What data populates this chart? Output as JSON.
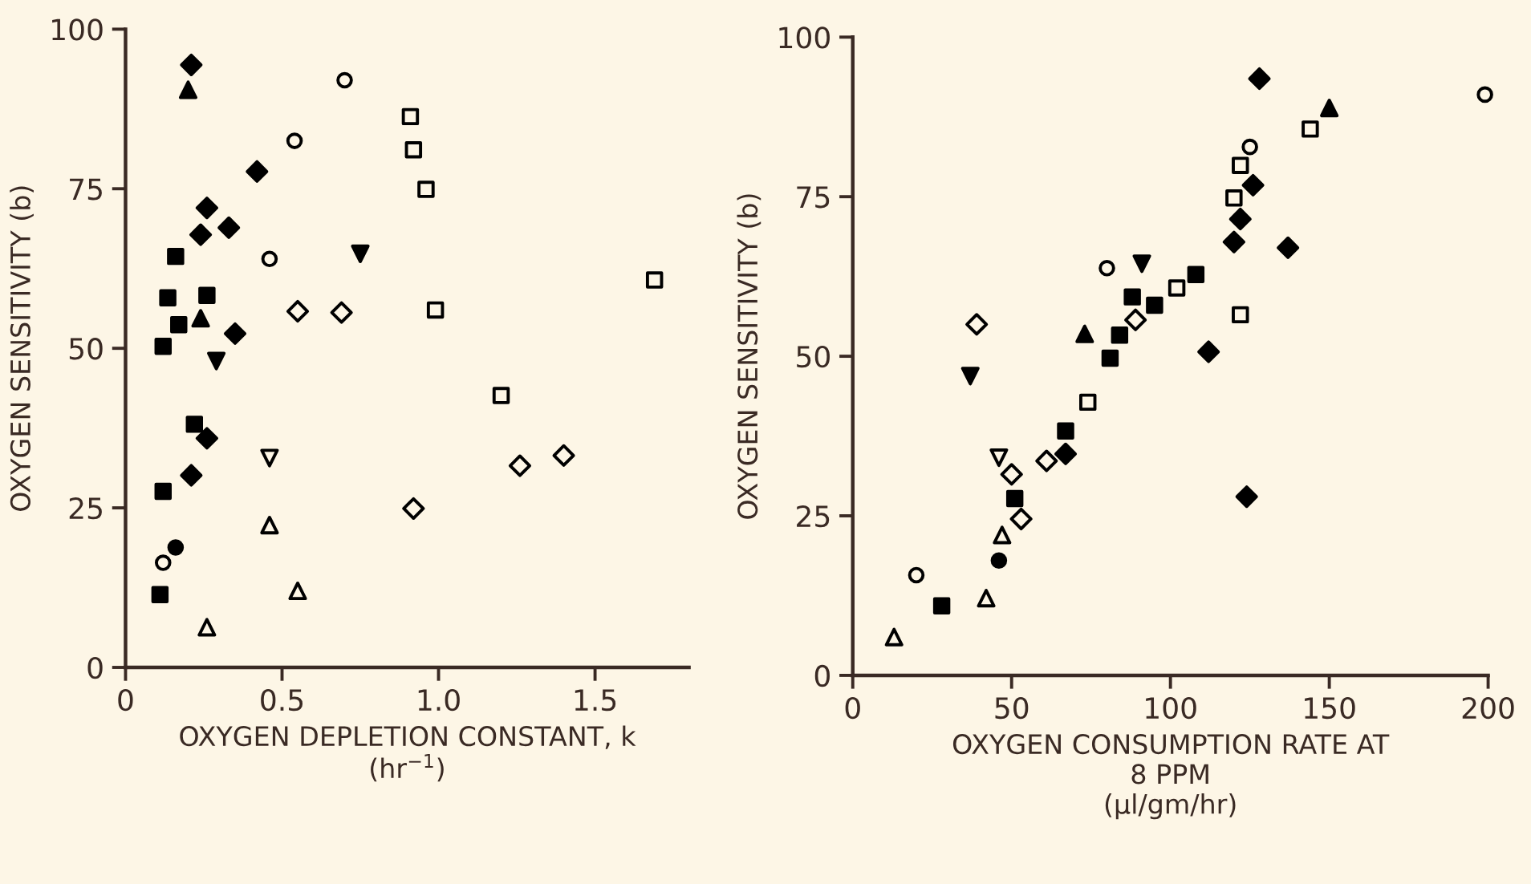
{
  "chart_data": [
    {
      "type": "scatter",
      "xlabel": "OXYGEN DEPLETION CONSTANT, k\n(hr$^{−1}$)",
      "ylabel": "OXYGEN SENSITIVITY (b)",
      "xlim": [
        0,
        1.8
      ],
      "ylim": [
        0,
        100
      ],
      "xticks": [
        0,
        0.5,
        {
          "value": 1,
          "label": "1.0"
        },
        1.5
      ],
      "yticks": [
        0,
        25,
        50,
        75,
        100
      ],
      "series": [
        {
          "color": "#000000",
          "marker": "square",
          "x": [
            0.16,
            0.135,
            0.17,
            0.26,
            0.12,
            0.22,
            0.12,
            0.11
          ],
          "values": [
            64.4,
            57.9,
            53.7,
            58.3,
            50.3,
            38.1,
            27.6,
            11.4
          ]
        },
        {
          "color": "#000000",
          "marker": "diamond",
          "x": [
            0.21,
            0.42,
            0.26,
            0.24,
            0.33,
            0.35,
            0.26,
            0.21
          ],
          "values": [
            94.4,
            77.7,
            72.0,
            67.8,
            68.9,
            52.3,
            35.9,
            30.1
          ]
        },
        {
          "color": "#000000",
          "marker": "triangle",
          "x": [
            0.2,
            0.24
          ],
          "values": [
            90.5,
            54.7
          ]
        },
        {
          "color": "#000000",
          "marker": "triangle_down",
          "x": [
            0.75,
            0.29
          ],
          "values": [
            64.8,
            48.0
          ]
        },
        {
          "color": "#000000",
          "marker": "circle",
          "x": [
            0.16
          ],
          "values": [
            18.8
          ]
        },
        {
          "color": "#fdf6e6",
          "marker": "circle",
          "x": [
            0.7,
            0.54,
            0.46,
            0.12
          ],
          "values": [
            92.0,
            82.5,
            64.0,
            16.4
          ]
        },
        {
          "color": "#fdf6e6",
          "marker": "square",
          "x": [
            0.91,
            0.92,
            0.96,
            0.99,
            1.2,
            1.69
          ],
          "values": [
            86.3,
            81.1,
            74.9,
            56.0,
            42.6,
            60.7
          ]
        },
        {
          "color": "#fdf6e6",
          "marker": "diamond",
          "x": [
            0.55,
            0.69,
            0.92,
            1.26,
            1.4
          ],
          "values": [
            55.8,
            55.6,
            24.9,
            31.6,
            33.2
          ]
        },
        {
          "color": "#fdf6e6",
          "marker": "triangle_down",
          "x": [
            0.46
          ],
          "values": [
            32.8
          ]
        },
        {
          "color": "#fdf6e6",
          "marker": "triangle",
          "x": [
            0.46,
            0.55,
            0.26
          ],
          "values": [
            22.3,
            12.0,
            6.3
          ]
        }
      ]
    },
    {
      "type": "scatter",
      "xlabel": "OXYGEN CONSUMPTION RATE AT\n8 PPM\n(μl/gm/hr)",
      "ylabel": "OXYGEN SENSITIVITY (b)",
      "xlim": [
        0,
        200
      ],
      "ylim": [
        0,
        100
      ],
      "xticks": [
        0,
        50,
        100,
        150,
        200
      ],
      "yticks": [
        0,
        25,
        50,
        75,
        100
      ],
      "series": [
        {
          "color": "#fdf6e6",
          "marker": "triangle",
          "x": [
            13,
            42,
            47
          ],
          "values": [
            6.0,
            12.1,
            22.0
          ]
        },
        {
          "color": "#fdf6e6",
          "marker": "circle",
          "x": [
            20,
            80,
            125,
            199
          ],
          "values": [
            15.7,
            63.8,
            82.8,
            91.0
          ]
        },
        {
          "color": "#000000",
          "marker": "square",
          "x": [
            28,
            51,
            67,
            81,
            84,
            88,
            95,
            108
          ],
          "values": [
            10.9,
            27.7,
            38.3,
            49.7,
            53.3,
            59.3,
            58.0,
            62.8
          ]
        },
        {
          "color": "#000000",
          "marker": "circle",
          "x": [
            46
          ],
          "values": [
            18.0
          ]
        },
        {
          "color": "#fdf6e6",
          "marker": "diamond",
          "x": [
            39,
            50,
            53,
            61,
            89
          ],
          "values": [
            55.0,
            31.5,
            24.5,
            33.6,
            55.7
          ]
        },
        {
          "color": "#000000",
          "marker": "triangle_down",
          "x": [
            37,
            91
          ],
          "values": [
            46.9,
            64.5
          ]
        },
        {
          "color": "#fdf6e6",
          "marker": "triangle_down",
          "x": [
            46
          ],
          "values": [
            34.1
          ]
        },
        {
          "color": "#000000",
          "marker": "diamond",
          "x": [
            67,
            112,
            120,
            122,
            126,
            128,
            137,
            124
          ],
          "values": [
            34.7,
            50.7,
            67.9,
            71.5,
            76.8,
            93.5,
            67.0,
            28.0
          ]
        },
        {
          "color": "#000000",
          "marker": "triangle",
          "x": [
            73,
            150
          ],
          "values": [
            53.5,
            88.9
          ]
        },
        {
          "color": "#fdf6e6",
          "marker": "square",
          "x": [
            74,
            102,
            120,
            122,
            122,
            144
          ],
          "values": [
            42.8,
            60.7,
            74.8,
            79.9,
            56.5,
            85.6
          ]
        }
      ]
    }
  ]
}
